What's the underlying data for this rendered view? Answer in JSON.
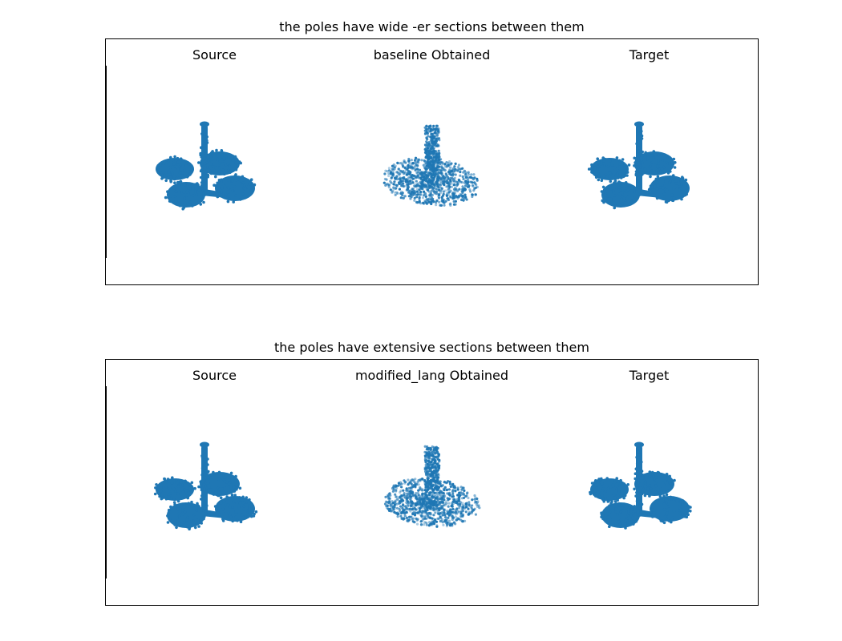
{
  "rows": [
    {
      "title": "the poles have wide -er sections between them",
      "subplots": [
        {
          "title": "Source",
          "cloud": "chair-source"
        },
        {
          "title": "baseline Obtained",
          "cloud": "chair-obtained"
        },
        {
          "title": "Target",
          "cloud": "chair-target"
        }
      ]
    },
    {
      "title": "the poles have extensive sections between them",
      "subplots": [
        {
          "title": "Source",
          "cloud": "chair-source"
        },
        {
          "title": "modified_lang Obtained",
          "cloud": "chair-obtained"
        },
        {
          "title": "Target",
          "cloud": "chair-target"
        }
      ]
    }
  ],
  "colors": {
    "point": "#1f77b4"
  }
}
